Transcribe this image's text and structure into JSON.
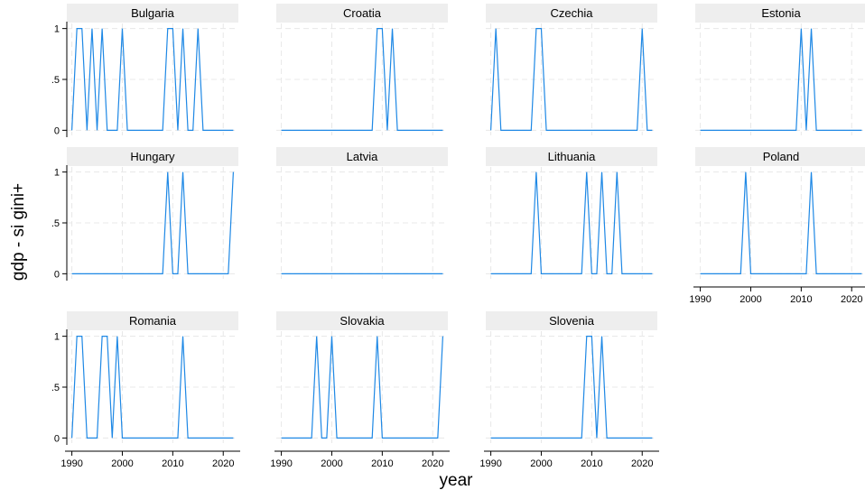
{
  "chart_data": {
    "type": "line",
    "xlabel": "year",
    "ylabel": "gdp - si gini+",
    "xlim": [
      1989,
      2023
    ],
    "ylim": [
      -0.05,
      1.05
    ],
    "x_ticks": [
      1990,
      2000,
      2010,
      2020
    ],
    "y_ticks": [
      {
        "value": 0,
        "label": "0"
      },
      {
        "value": 0.5,
        "label": ".5"
      },
      {
        "value": 1,
        "label": "1"
      }
    ],
    "grid": true,
    "line_color": "#1e88e5",
    "panels": [
      {
        "name": "Bulgaria",
        "x": [
          1990,
          1991,
          1992,
          1993,
          1994,
          1995,
          1996,
          1997,
          1998,
          1999,
          2000,
          2001,
          2008,
          2009,
          2010,
          2011,
          2012,
          2013,
          2014,
          2015,
          2016,
          2022
        ],
        "y": [
          0,
          1,
          1,
          0,
          1,
          0,
          1,
          0,
          0,
          0,
          1,
          0,
          0,
          1,
          1,
          0,
          1,
          0,
          0,
          1,
          0,
          0
        ]
      },
      {
        "name": "Croatia",
        "x": [
          1990,
          2008,
          2009,
          2010,
          2011,
          2012,
          2013,
          2022
        ],
        "y": [
          0,
          0,
          1,
          1,
          0,
          1,
          0,
          0
        ]
      },
      {
        "name": "Czechia",
        "x": [
          1990,
          1991,
          1992,
          1998,
          1999,
          2000,
          2001,
          2019,
          2020,
          2021,
          2022
        ],
        "y": [
          0,
          1,
          0,
          0,
          1,
          1,
          0,
          0,
          1,
          0,
          0
        ]
      },
      {
        "name": "Estonia",
        "x": [
          1990,
          2009,
          2010,
          2011,
          2012,
          2013,
          2022
        ],
        "y": [
          0,
          0,
          1,
          0,
          1,
          0,
          0
        ]
      },
      {
        "name": "Hungary",
        "x": [
          1990,
          2008,
          2009,
          2010,
          2011,
          2012,
          2013,
          2021,
          2022
        ],
        "y": [
          0,
          0,
          1,
          0,
          0,
          1,
          0,
          0,
          1
        ]
      },
      {
        "name": "Latvia",
        "x": [
          1990,
          2022
        ],
        "y": [
          0,
          0
        ]
      },
      {
        "name": "Lithuania",
        "x": [
          1990,
          1998,
          1999,
          2000,
          2008,
          2009,
          2010,
          2011,
          2012,
          2013,
          2014,
          2015,
          2016,
          2022
        ],
        "y": [
          0,
          0,
          1,
          0,
          0,
          1,
          0,
          0,
          1,
          0,
          0,
          1,
          0,
          0
        ]
      },
      {
        "name": "Poland",
        "x": [
          1990,
          1998,
          1999,
          2000,
          2011,
          2012,
          2013,
          2022
        ],
        "y": [
          0,
          0,
          1,
          0,
          0,
          1,
          0,
          0
        ]
      },
      {
        "name": "Romania",
        "x": [
          1990,
          1991,
          1992,
          1993,
          1995,
          1996,
          1997,
          1998,
          1999,
          2000,
          2011,
          2012,
          2013,
          2022
        ],
        "y": [
          0,
          1,
          1,
          0,
          0,
          1,
          1,
          0,
          1,
          0,
          0,
          1,
          0,
          0
        ]
      },
      {
        "name": "Slovakia",
        "x": [
          1990,
          1996,
          1997,
          1998,
          1999,
          2000,
          2001,
          2008,
          2009,
          2010,
          2021,
          2022
        ],
        "y": [
          0,
          0,
          1,
          0,
          0,
          1,
          0,
          0,
          1,
          0,
          0,
          1
        ]
      },
      {
        "name": "Slovenia",
        "x": [
          1990,
          2008,
          2009,
          2010,
          2011,
          2012,
          2013,
          2022
        ],
        "y": [
          0,
          0,
          1,
          1,
          0,
          1,
          0,
          0
        ]
      }
    ]
  }
}
